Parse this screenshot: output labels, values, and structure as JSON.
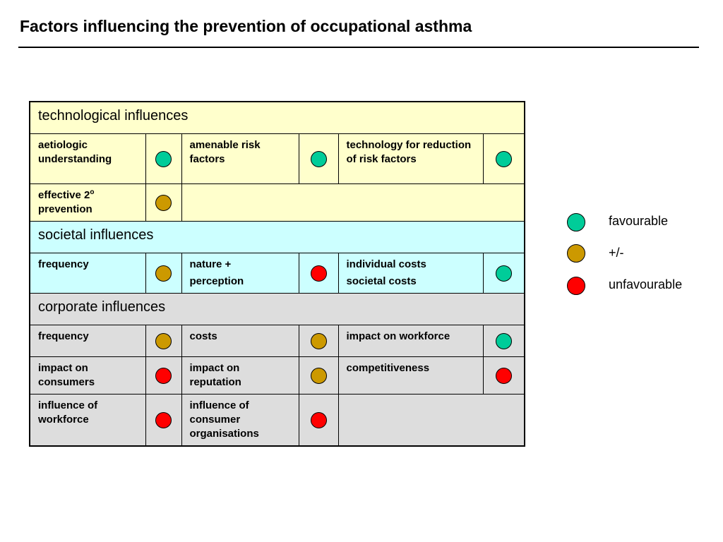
{
  "title": "Factors influencing the prevention of occupational asthma",
  "colors": {
    "favourable": "#00cc99",
    "neutral": "#cc9900",
    "unfavourable": "#ff0000",
    "technological_bg": "#ffffcc",
    "societal_bg": "#ccffff",
    "corporate_bg": "#dddddd"
  },
  "sections": {
    "technological": {
      "header": "technological influences",
      "r1": {
        "c1": "aetiologic understanding",
        "c2": "amenable risk factors",
        "c3": "technology for reduction of risk factors",
        "ratings": [
          "favourable",
          "favourable",
          "favourable"
        ]
      },
      "r2": {
        "c1": "effective 2",
        "c1_sup": "o",
        "c1_rest": "prevention",
        "ratings": [
          "+/-"
        ]
      }
    },
    "societal": {
      "header": "societal influences",
      "r1": {
        "c1": "frequency",
        "c2": "nature +",
        "c2_line2": "perception",
        "c3": "individual costs",
        "c3_line2": "societal costs",
        "ratings": [
          "+/-",
          "unfavourable",
          "favourable"
        ]
      }
    },
    "corporate": {
      "header": "corporate influences",
      "r1": {
        "c1": "frequency",
        "c2": "costs",
        "c3": "impact on workforce",
        "ratings": [
          "+/-",
          "+/-",
          "favourable"
        ]
      },
      "r2": {
        "c1": "impact on consumers",
        "c2": "impact on reputation",
        "c3": "competitiveness",
        "ratings": [
          "unfavourable",
          "+/-",
          "unfavourable"
        ]
      },
      "r3": {
        "c1": "influence of workforce",
        "c2": "influence of consumer organisations",
        "ratings": [
          "unfavourable",
          "unfavourable"
        ]
      }
    }
  },
  "legend": [
    {
      "label": "favourable",
      "color": "#00cc99"
    },
    {
      "label": "+/-",
      "color": "#cc9900"
    },
    {
      "label": "unfavourable",
      "color": "#ff0000"
    }
  ]
}
